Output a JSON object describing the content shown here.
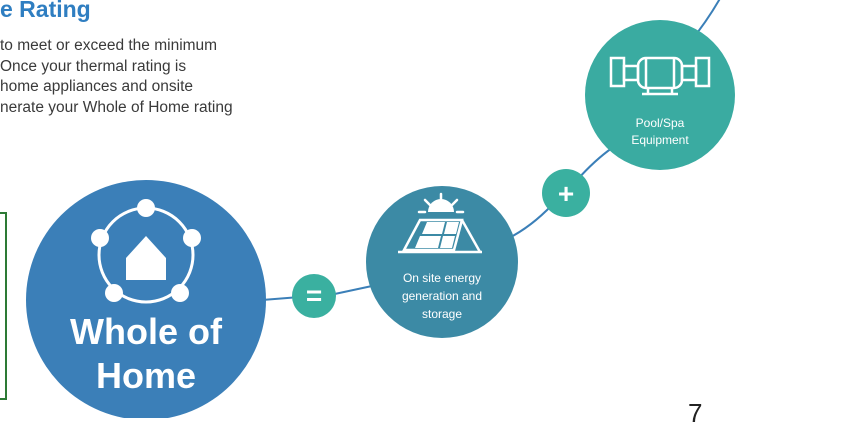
{
  "heading": "e Rating",
  "paragraph_lines": [
    "to meet or exceed the minimum",
    "Once your thermal rating is",
    "home appliances and onsite",
    "nerate your Whole of Home rating"
  ],
  "nodes": {
    "whole_of_home": {
      "line1": "Whole of",
      "line2": "Home"
    },
    "on_site_energy": {
      "line1": "On site energy",
      "line2": "generation and",
      "line3": "storage"
    },
    "pool_spa": {
      "line1": "Pool/Spa",
      "line2": "Equipment"
    }
  },
  "operators": {
    "equals": "=",
    "plus": "+"
  },
  "page_number": "7",
  "colors": {
    "heading": "#2f7ec1",
    "whole_of_home_circle": "#3b7fb8",
    "on_site_energy_circle": "#3c8aa5",
    "pool_spa_circle": "#3aaba1",
    "operator_circle": "#3ab0a0",
    "connector_line": "#3b7fb8",
    "green_box_border": "#2d7a35"
  }
}
